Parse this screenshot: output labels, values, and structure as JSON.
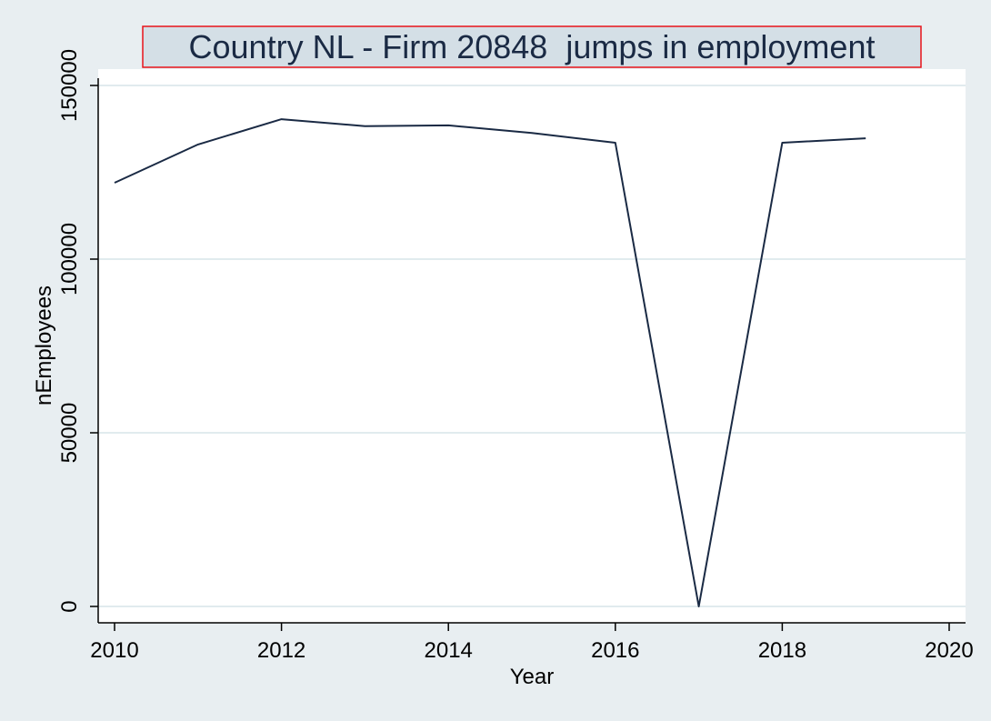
{
  "chart_data": {
    "type": "line",
    "title": "Country NL - Firm 20848  jumps in employment",
    "xlabel": "Year",
    "ylabel": "nEmployees",
    "xlim": [
      2010,
      2020
    ],
    "ylim": [
      0,
      150000
    ],
    "x_ticks": [
      2010,
      2012,
      2014,
      2016,
      2018,
      2020
    ],
    "y_ticks": [
      0,
      50000,
      100000,
      150000
    ],
    "x_tick_labels": [
      "2010",
      "2012",
      "2014",
      "2016",
      "2018",
      "2020"
    ],
    "y_tick_labels": [
      "0",
      "50000",
      "100000",
      "150000"
    ],
    "grid": "horizontal",
    "series": [
      {
        "x": [
          2010,
          2011,
          2012,
          2013,
          2014,
          2015,
          2016,
          2017,
          2018,
          2019
        ],
        "values": [
          122000,
          133000,
          140300,
          138300,
          138500,
          136300,
          133500,
          0,
          133500,
          134800
        ]
      }
    ],
    "colors": {
      "line": "#1a2a44",
      "grid": "#e1ebee",
      "plot_bg": "#ffffff",
      "page_bg": "#e8eef1",
      "title_bg": "#d4dfe6",
      "title_border": "#e8141a"
    }
  }
}
